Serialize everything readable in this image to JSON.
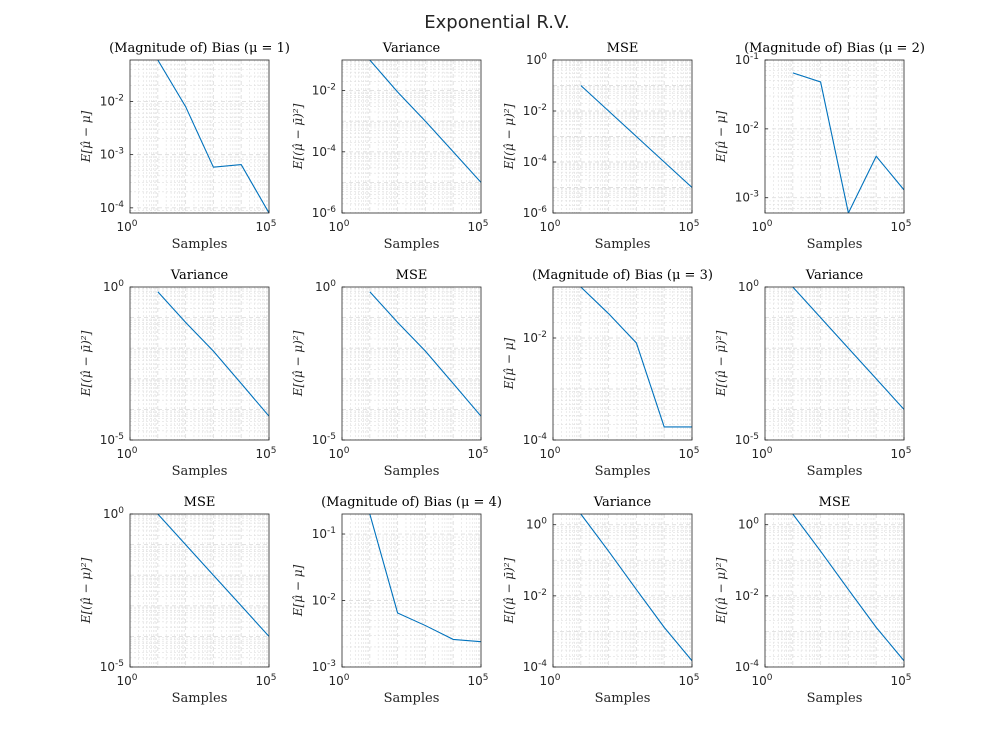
{
  "figure": {
    "title": "Exponential R.V."
  },
  "colors": {
    "line": "#0072BD",
    "axes": "#262626",
    "grid": "#dfdfdf"
  },
  "chart_data": [
    {
      "type": "line",
      "title": "(Magnitude of) Bias (μ = 1)",
      "xlabel": "Samples",
      "ylabel": "E[μ̂ − μ]",
      "xscale": "log",
      "yscale": "log",
      "xlim": [
        1,
        100000
      ],
      "ylim": [
        8e-05,
        0.06
      ],
      "xticks": [
        {
          "base": "10",
          "exp": "0"
        },
        {
          "base": "10",
          "exp": "5"
        }
      ],
      "yticks": [
        {
          "base": "10",
          "exp": "-4",
          "v": 0.0001
        },
        {
          "base": "10",
          "exp": "-3",
          "v": 0.001
        },
        {
          "base": "10",
          "exp": "-2",
          "v": 0.01
        }
      ],
      "x": [
        10,
        100,
        1000,
        10000,
        100000
      ],
      "y": [
        0.06,
        0.008,
        0.00058,
        0.00065,
        8e-05
      ],
      "grid": true
    },
    {
      "type": "line",
      "title": "Variance",
      "xlabel": "Samples",
      "ylabel": "E[(μ̂ − μ̄)²]",
      "xscale": "log",
      "yscale": "log",
      "xlim": [
        1,
        100000
      ],
      "ylim": [
        1e-06,
        0.1
      ],
      "xticks": [
        {
          "base": "10",
          "exp": "0"
        },
        {
          "base": "10",
          "exp": "5"
        }
      ],
      "yticks": [
        {
          "base": "10",
          "exp": "-6",
          "v": 1e-06
        },
        {
          "base": "10",
          "exp": "-4",
          "v": 0.0001
        },
        {
          "base": "10",
          "exp": "-2",
          "v": 0.01
        }
      ],
      "x": [
        10,
        100,
        1000,
        10000,
        100000
      ],
      "y": [
        0.1,
        0.009,
        0.001,
        0.0001,
        1e-05
      ],
      "grid": true
    },
    {
      "type": "line",
      "title": "MSE",
      "xlabel": "Samples",
      "ylabel": "E[(μ̂ − μ)²]",
      "xscale": "log",
      "yscale": "log",
      "xlim": [
        1,
        100000
      ],
      "ylim": [
        1e-06,
        1
      ],
      "xticks": [
        {
          "base": "10",
          "exp": "0"
        },
        {
          "base": "10",
          "exp": "5"
        }
      ],
      "yticks": [
        {
          "base": "10",
          "exp": "-6",
          "v": 1e-06
        },
        {
          "base": "10",
          "exp": "-4",
          "v": 0.0001
        },
        {
          "base": "10",
          "exp": "-2",
          "v": 0.01
        },
        {
          "base": "10",
          "exp": "0",
          "v": 1
        }
      ],
      "x": [
        10,
        100,
        1000,
        10000,
        100000
      ],
      "y": [
        0.1,
        0.01,
        0.001,
        0.0001,
        1e-05
      ],
      "grid": true
    },
    {
      "type": "line",
      "title": "(Magnitude of) Bias (μ = 2)",
      "xlabel": "Samples",
      "ylabel": "E[μ̂ − μ]",
      "xscale": "log",
      "yscale": "log",
      "xlim": [
        1,
        100000
      ],
      "ylim": [
        0.0006,
        0.1
      ],
      "xticks": [
        {
          "base": "10",
          "exp": "0"
        },
        {
          "base": "10",
          "exp": "5"
        }
      ],
      "yticks": [
        {
          "base": "10",
          "exp": "-3",
          "v": 0.001
        },
        {
          "base": "10",
          "exp": "-2",
          "v": 0.01
        },
        {
          "base": "10",
          "exp": "-1",
          "v": 0.1
        }
      ],
      "x": [
        10,
        100,
        1000,
        10000,
        100000
      ],
      "y": [
        0.065,
        0.048,
        0.0006,
        0.004,
        0.0013
      ],
      "grid": true
    },
    {
      "type": "line",
      "title": "Variance",
      "xlabel": "Samples",
      "ylabel": "E[(μ̂ − μ̄)²]",
      "xscale": "log",
      "yscale": "log",
      "xlim": [
        1,
        100000
      ],
      "ylim": [
        1e-05,
        1
      ],
      "xticks": [
        {
          "base": "10",
          "exp": "0"
        },
        {
          "base": "10",
          "exp": "5"
        }
      ],
      "yticks": [
        {
          "base": "10",
          "exp": "-5",
          "v": 1e-05
        },
        {
          "base": "10",
          "exp": "0",
          "v": 1
        }
      ],
      "x": [
        10,
        100,
        1000,
        10000,
        100000
      ],
      "y": [
        0.7,
        0.07,
        0.008,
        0.0007,
        6e-05
      ],
      "grid": true
    },
    {
      "type": "line",
      "title": "MSE",
      "xlabel": "Samples",
      "ylabel": "E[(μ̂ − μ)²]",
      "xscale": "log",
      "yscale": "log",
      "xlim": [
        1,
        100000
      ],
      "ylim": [
        1e-05,
        1
      ],
      "xticks": [
        {
          "base": "10",
          "exp": "0"
        },
        {
          "base": "10",
          "exp": "5"
        }
      ],
      "yticks": [
        {
          "base": "10",
          "exp": "-5",
          "v": 1e-05
        },
        {
          "base": "10",
          "exp": "0",
          "v": 1
        }
      ],
      "x": [
        10,
        100,
        1000,
        10000,
        100000
      ],
      "y": [
        0.7,
        0.07,
        0.008,
        0.0007,
        6e-05
      ],
      "grid": true
    },
    {
      "type": "line",
      "title": "(Magnitude of) Bias (μ = 3)",
      "xlabel": "Samples",
      "ylabel": "E[μ̂ − μ]",
      "xscale": "log",
      "yscale": "log",
      "xlim": [
        1,
        100000
      ],
      "ylim": [
        0.0001,
        0.1
      ],
      "xticks": [
        {
          "base": "10",
          "exp": "0"
        },
        {
          "base": "10",
          "exp": "5"
        }
      ],
      "yticks": [
        {
          "base": "10",
          "exp": "-4",
          "v": 0.0001
        },
        {
          "base": "10",
          "exp": "-2",
          "v": 0.01
        }
      ],
      "x": [
        10,
        100,
        1000,
        10000,
        100000
      ],
      "y": [
        0.1,
        0.03,
        0.008,
        0.00018,
        0.00018
      ],
      "grid": true
    },
    {
      "type": "line",
      "title": "Variance",
      "xlabel": "Samples",
      "ylabel": "E[(μ̂ − μ̄)²]",
      "xscale": "log",
      "yscale": "log",
      "xlim": [
        1,
        100000
      ],
      "ylim": [
        1e-05,
        1
      ],
      "xticks": [
        {
          "base": "10",
          "exp": "0"
        },
        {
          "base": "10",
          "exp": "5"
        }
      ],
      "yticks": [
        {
          "base": "10",
          "exp": "-5",
          "v": 1e-05
        },
        {
          "base": "10",
          "exp": "0",
          "v": 1
        }
      ],
      "x": [
        10,
        100,
        1000,
        10000,
        100000
      ],
      "y": [
        1,
        0.1,
        0.01,
        0.001,
        0.0001
      ],
      "grid": true
    },
    {
      "type": "line",
      "title": "MSE",
      "xlabel": "Samples",
      "ylabel": "E[(μ̂ − μ)²]",
      "xscale": "log",
      "yscale": "log",
      "xlim": [
        1,
        100000
      ],
      "ylim": [
        1e-05,
        1
      ],
      "xticks": [
        {
          "base": "10",
          "exp": "0"
        },
        {
          "base": "10",
          "exp": "5"
        }
      ],
      "yticks": [
        {
          "base": "10",
          "exp": "-5",
          "v": 1e-05
        },
        {
          "base": "10",
          "exp": "0",
          "v": 1
        }
      ],
      "x": [
        10,
        100,
        1000,
        10000,
        100000
      ],
      "y": [
        1,
        0.1,
        0.01,
        0.001,
        0.0001
      ],
      "grid": true
    },
    {
      "type": "line",
      "title": "(Magnitude of) Bias (μ = 4)",
      "xlabel": "Samples",
      "ylabel": "E[μ̂ − μ]",
      "xscale": "log",
      "yscale": "log",
      "xlim": [
        1,
        100000
      ],
      "ylim": [
        0.001,
        0.2
      ],
      "xticks": [
        {
          "base": "10",
          "exp": "0"
        },
        {
          "base": "10",
          "exp": "5"
        }
      ],
      "yticks": [
        {
          "base": "10",
          "exp": "-3",
          "v": 0.001
        },
        {
          "base": "10",
          "exp": "-2",
          "v": 0.01
        },
        {
          "base": "10",
          "exp": "-1",
          "v": 0.1
        }
      ],
      "x": [
        10,
        100,
        1000,
        10000,
        100000
      ],
      "y": [
        0.2,
        0.0065,
        0.0042,
        0.0026,
        0.0024
      ],
      "grid": true
    },
    {
      "type": "line",
      "title": "Variance",
      "xlabel": "Samples",
      "ylabel": "E[(μ̂ − μ̄)²]",
      "xscale": "log",
      "yscale": "log",
      "xlim": [
        1,
        100000
      ],
      "ylim": [
        0.0001,
        2
      ],
      "xticks": [
        {
          "base": "10",
          "exp": "0"
        },
        {
          "base": "10",
          "exp": "5"
        }
      ],
      "yticks": [
        {
          "base": "10",
          "exp": "-4",
          "v": 0.0001
        },
        {
          "base": "10",
          "exp": "-2",
          "v": 0.01
        },
        {
          "base": "10",
          "exp": "0",
          "v": 1
        }
      ],
      "x": [
        10,
        100,
        1000,
        10000,
        100000
      ],
      "y": [
        2,
        0.18,
        0.015,
        0.0013,
        0.00015
      ],
      "grid": true
    },
    {
      "type": "line",
      "title": "MSE",
      "xlabel": "Samples",
      "ylabel": "E[(μ̂ − μ)²]",
      "xscale": "log",
      "yscale": "log",
      "xlim": [
        1,
        100000
      ],
      "ylim": [
        0.0001,
        2
      ],
      "xticks": [
        {
          "base": "10",
          "exp": "0"
        },
        {
          "base": "10",
          "exp": "5"
        }
      ],
      "yticks": [
        {
          "base": "10",
          "exp": "-4",
          "v": 0.0001
        },
        {
          "base": "10",
          "exp": "-2",
          "v": 0.01
        },
        {
          "base": "10",
          "exp": "0",
          "v": 1
        }
      ],
      "x": [
        10,
        100,
        1000,
        10000,
        100000
      ],
      "y": [
        2,
        0.18,
        0.015,
        0.0013,
        0.00015
      ],
      "grid": true
    }
  ]
}
